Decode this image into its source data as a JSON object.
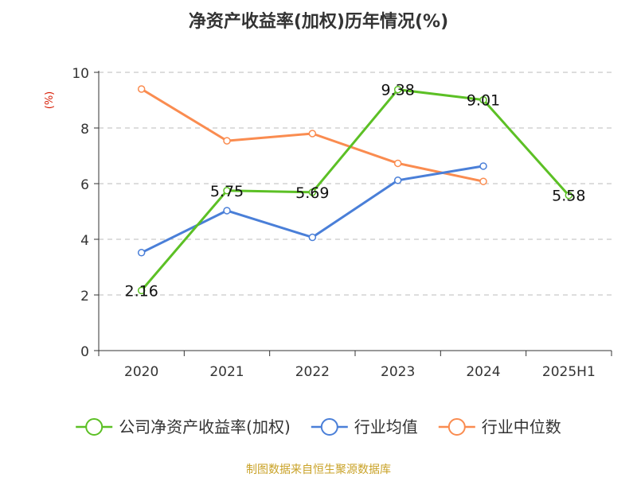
{
  "chart_data": {
    "type": "line",
    "title": "净资产收益率(加权)历年情况(%)",
    "ylabel": "(%)",
    "xlabel": "",
    "categories": [
      "2020",
      "2021",
      "2022",
      "2023",
      "2024",
      "2025H1"
    ],
    "ylim": [
      0,
      10
    ],
    "yticks": [
      0,
      2,
      4,
      6,
      8,
      10
    ],
    "grid": true,
    "legend_position": "bottom",
    "series": [
      {
        "name": "公司净资产收益率(加权)",
        "color": "#5cc025",
        "values": [
          2.16,
          5.75,
          5.69,
          9.38,
          9.01,
          5.58
        ],
        "show_labels": true,
        "labels": [
          "2.16",
          "5.75",
          "5.69",
          "9.38",
          "9.01",
          "5.58"
        ]
      },
      {
        "name": "行业均值",
        "color": "#4a7fd8",
        "values": [
          3.52,
          5.03,
          4.07,
          6.12,
          6.63,
          null
        ],
        "show_labels": false
      },
      {
        "name": "行业中位数",
        "color": "#fa8c50",
        "values": [
          9.4,
          7.54,
          7.8,
          6.73,
          6.08,
          null
        ],
        "show_labels": false
      }
    ]
  },
  "source_text": "制图数据来自恒生聚源数据库"
}
